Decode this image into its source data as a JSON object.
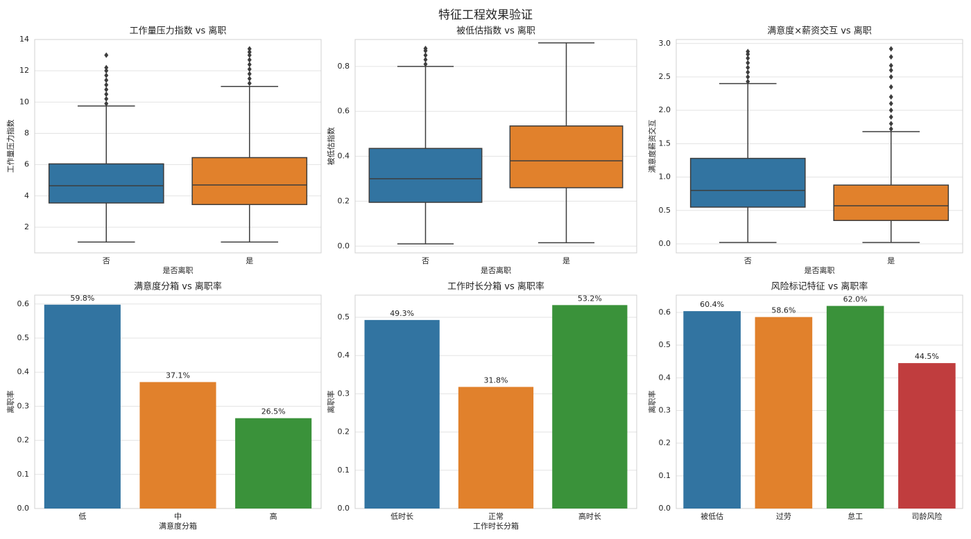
{
  "title": "特征工程效果验证",
  "chart_data": [
    {
      "type": "box",
      "title": "工作量压力指数 vs 离职",
      "xlabel": "是否离职",
      "ylabel": "工作量压力指数",
      "categories": [
        "否",
        "是"
      ],
      "colors": [
        "#3274a1",
        "#e1812c"
      ],
      "boxes": [
        {
          "whislo": 1.05,
          "q1": 3.55,
          "med": 4.65,
          "q3": 6.05,
          "whishi": 9.75,
          "fliers": [
            9.9,
            10.2,
            10.5,
            10.8,
            11.1,
            11.4,
            11.7,
            12.0,
            12.2,
            13.0
          ]
        },
        {
          "whislo": 1.05,
          "q1": 3.45,
          "med": 4.7,
          "q3": 6.45,
          "whishi": 11.0,
          "fliers": [
            11.2,
            11.5,
            11.8,
            12.1,
            12.4,
            12.7,
            13.0,
            13.2,
            13.4
          ]
        }
      ],
      "ylim": [
        0.36,
        14
      ],
      "yticks": [
        2,
        4,
        6,
        8,
        10,
        12,
        14
      ],
      "grid": true
    },
    {
      "type": "box",
      "title": "被低估指数 vs 离职",
      "xlabel": "是否离职",
      "ylabel": "被低估指数",
      "categories": [
        "否",
        "是"
      ],
      "colors": [
        "#3274a1",
        "#e1812c"
      ],
      "boxes": [
        {
          "whislo": 0.01,
          "q1": 0.195,
          "med": 0.3,
          "q3": 0.435,
          "whishi": 0.8,
          "fliers": [
            0.81,
            0.83,
            0.85,
            0.87,
            0.88
          ]
        },
        {
          "whislo": 0.015,
          "q1": 0.26,
          "med": 0.38,
          "q3": 0.535,
          "whishi": 0.905,
          "fliers": []
        }
      ],
      "ylim": [
        -0.03,
        0.92
      ],
      "yticks": [
        {
          "value": 0,
          "label": "0.0"
        },
        0.2,
        0.4,
        0.6,
        0.8
      ],
      "grid": true
    },
    {
      "type": "box",
      "title": "满意度×薪资交互 vs 离职",
      "xlabel": "是否离职",
      "ylabel": "满意度薪资交互",
      "categories": [
        "否",
        "是"
      ],
      "colors": [
        "#3274a1",
        "#e1812c"
      ],
      "boxes": [
        {
          "whislo": 0.02,
          "q1": 0.55,
          "med": 0.8,
          "q3": 1.28,
          "whishi": 2.4,
          "fliers": [
            2.43,
            2.5,
            2.57,
            2.64,
            2.71,
            2.78,
            2.84,
            2.88
          ]
        },
        {
          "whislo": 0.02,
          "q1": 0.35,
          "med": 0.57,
          "q3": 0.88,
          "whishi": 1.68,
          "fliers": [
            1.72,
            1.8,
            1.9,
            2.0,
            2.1,
            2.2,
            2.35,
            2.5,
            2.6,
            2.67,
            2.8,
            2.92
          ]
        }
      ],
      "ylim": [
        -0.135,
        3.06
      ],
      "yticks": [
        {
          "value": 0,
          "label": "0.0"
        },
        0.5,
        {
          "value": 1,
          "label": "1.0"
        },
        1.5,
        {
          "value": 2,
          "label": "2.0"
        },
        2.5,
        {
          "value": 3,
          "label": "3.0"
        }
      ],
      "grid": true
    },
    {
      "type": "bar",
      "title": "满意度分箱 vs 离职率",
      "xlabel": "满意度分箱",
      "ylabel": "离职率",
      "categories": [
        "低",
        "中",
        "高"
      ],
      "colors": [
        "#3274a1",
        "#e1812c",
        "#3a923a"
      ],
      "values": [
        0.598,
        0.371,
        0.265
      ],
      "value_labels": [
        "59.8%",
        "37.1%",
        "26.5%"
      ],
      "ylim": [
        0,
        0.626
      ],
      "yticks": [
        {
          "value": 0,
          "label": "0.0"
        },
        0.1,
        0.2,
        0.3,
        0.4,
        0.5,
        0.6
      ],
      "grid": true
    },
    {
      "type": "bar",
      "title": "工作时长分箱 vs 离职率",
      "xlabel": "工作时长分箱",
      "ylabel": "离职率",
      "categories": [
        "低时长",
        "正常",
        "高时长"
      ],
      "colors": [
        "#3274a1",
        "#e1812c",
        "#3a923a"
      ],
      "values": [
        0.493,
        0.318,
        0.532
      ],
      "value_labels": [
        "49.3%",
        "31.8%",
        "53.2%"
      ],
      "ylim": [
        0,
        0.558
      ],
      "yticks": [
        {
          "value": 0,
          "label": "0.0"
        },
        0.1,
        0.2,
        0.3,
        0.4,
        0.5
      ],
      "grid": true
    },
    {
      "type": "bar",
      "title": "风险标记特征 vs 离职率",
      "ylabel": "离职率",
      "categories": [
        "被低估",
        "过劳",
        "怠工",
        "司龄风险"
      ],
      "colors": [
        "#3274a1",
        "#e1812c",
        "#3a923a",
        "#c03d3e"
      ],
      "values": [
        0.604,
        0.586,
        0.62,
        0.445
      ],
      "value_labels": [
        "60.4%",
        "58.6%",
        "62.0%",
        "44.5%"
      ],
      "ylim": [
        0,
        0.653
      ],
      "yticks": [
        {
          "value": 0,
          "label": "0.0"
        },
        0.1,
        0.2,
        0.3,
        0.4,
        0.5,
        0.6
      ],
      "grid": true
    }
  ]
}
